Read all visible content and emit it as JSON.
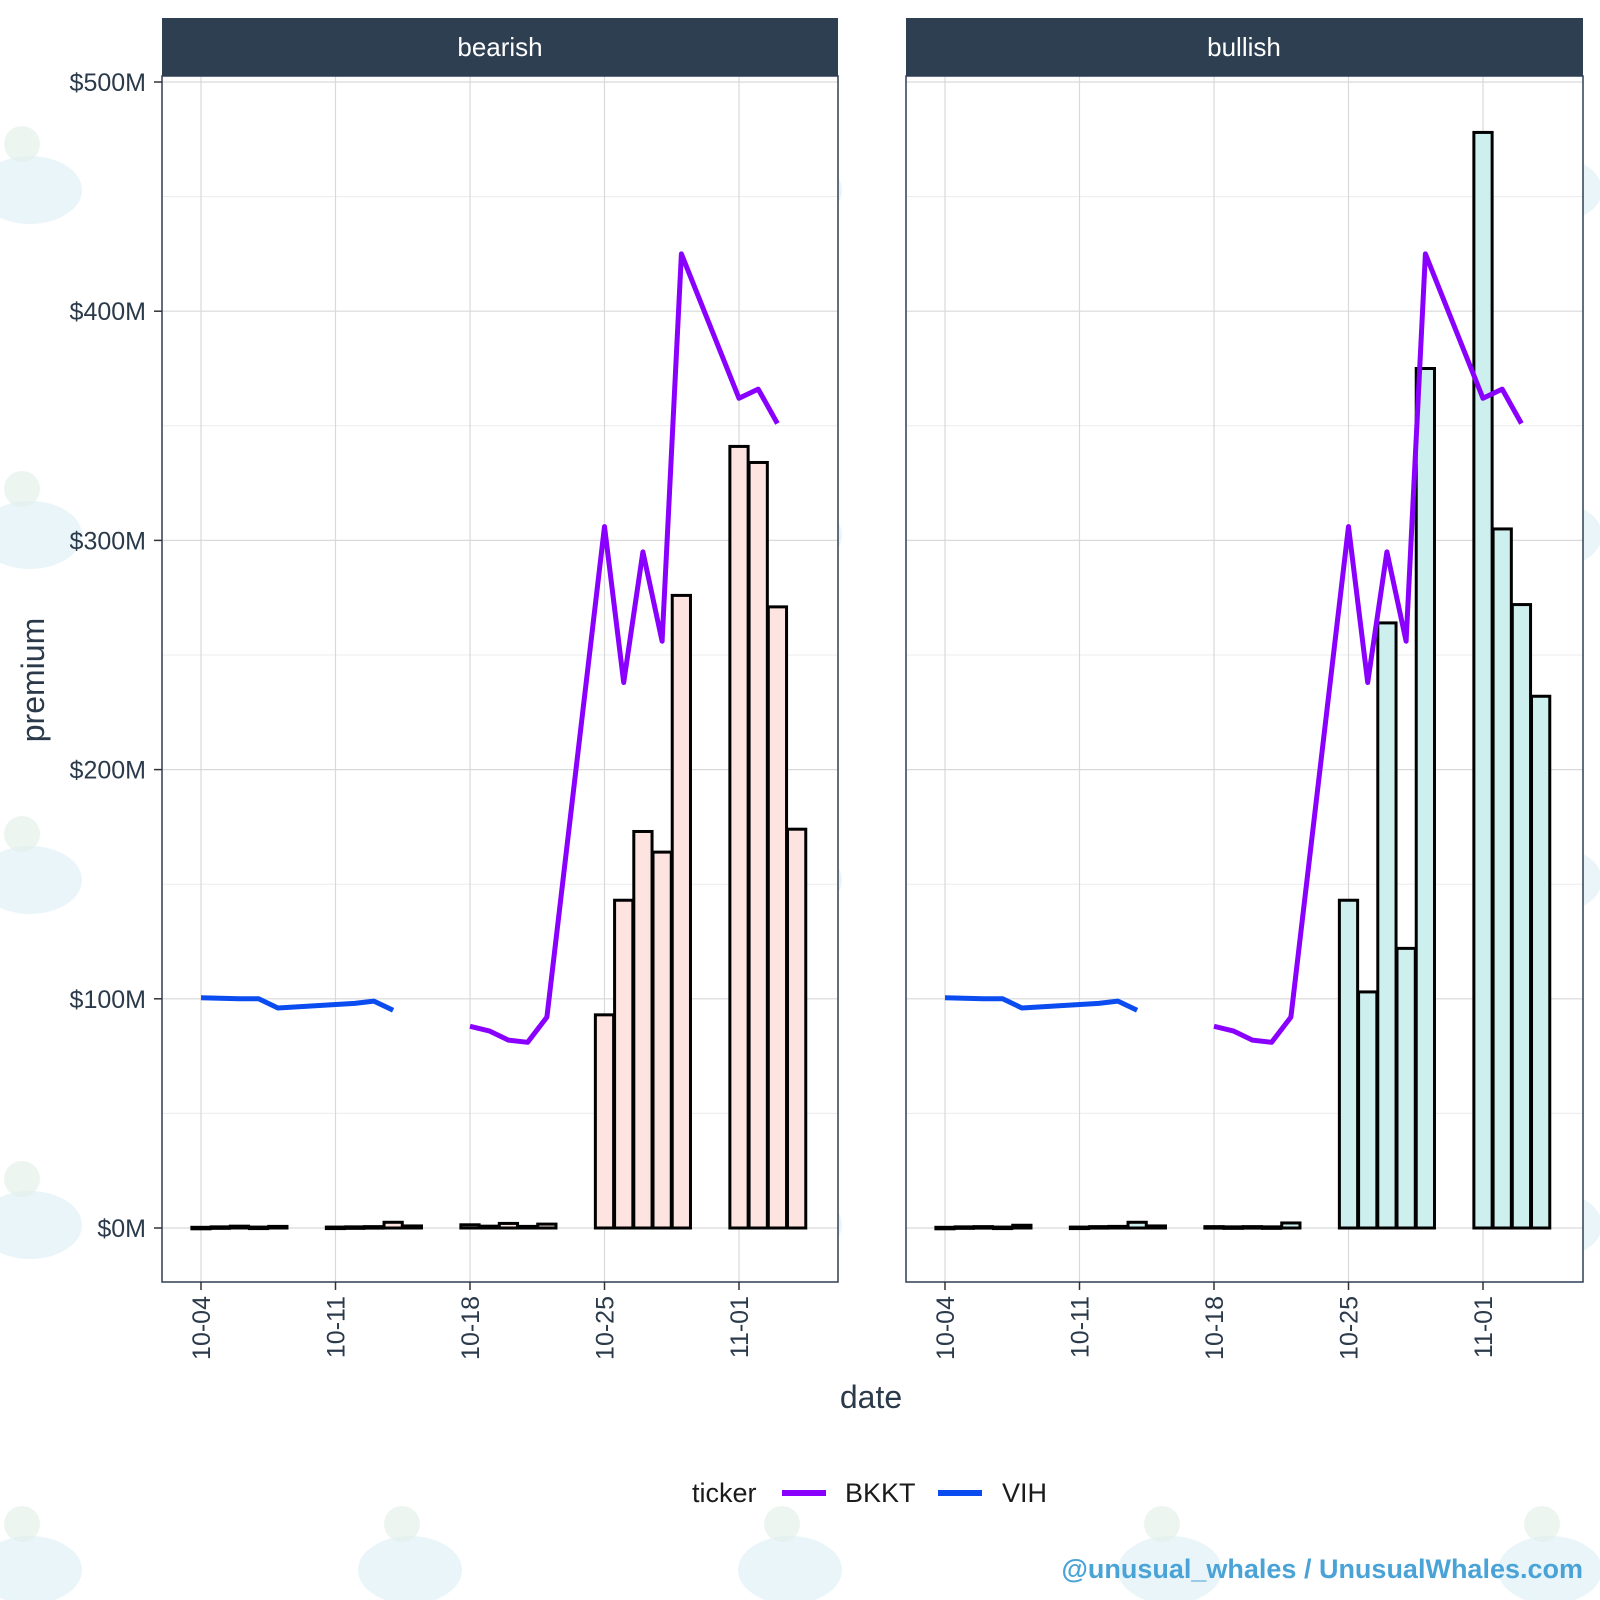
{
  "chart_data": {
    "type": "bar",
    "facets": [
      "bearish",
      "bullish"
    ],
    "xlabel": "date",
    "ylabel": "premium",
    "ylim": [
      -24,
      500
    ],
    "y_ticks": [
      {
        "value": 0,
        "label": "$0M"
      },
      {
        "value": 100,
        "label": "$100M"
      },
      {
        "value": 200,
        "label": "$200M"
      },
      {
        "value": 300,
        "label": "$300M"
      },
      {
        "value": 400,
        "label": "$400M"
      },
      {
        "value": 500,
        "label": "$500M"
      }
    ],
    "x_ticks": [
      {
        "date": "2021-10-04",
        "label": "10-04"
      },
      {
        "date": "2021-10-11",
        "label": "10-11"
      },
      {
        "date": "2021-10-18",
        "label": "10-18"
      },
      {
        "date": "2021-10-25",
        "label": "10-25"
      },
      {
        "date": "2021-11-01",
        "label": "11-01"
      }
    ],
    "xlim": [
      "2021-10-01",
      "2021-11-05"
    ],
    "bar_series": {
      "bearish": {
        "fill": "#fde4e1",
        "bars": [
          {
            "date": "2021-10-04",
            "value": 0.3
          },
          {
            "date": "2021-10-05",
            "value": 0.5
          },
          {
            "date": "2021-10-06",
            "value": 0.8
          },
          {
            "date": "2021-10-07",
            "value": 0.4
          },
          {
            "date": "2021-10-08",
            "value": 0.7
          },
          {
            "date": "2021-10-11",
            "value": 0.4
          },
          {
            "date": "2021-10-12",
            "value": 0.5
          },
          {
            "date": "2021-10-13",
            "value": 0.6
          },
          {
            "date": "2021-10-14",
            "value": 2.5
          },
          {
            "date": "2021-10-15",
            "value": 0.9
          },
          {
            "date": "2021-10-18",
            "value": 1.4
          },
          {
            "date": "2021-10-19",
            "value": 0.8
          },
          {
            "date": "2021-10-20",
            "value": 2.0
          },
          {
            "date": "2021-10-21",
            "value": 0.7
          },
          {
            "date": "2021-10-22",
            "value": 1.7
          },
          {
            "date": "2021-10-25",
            "value": 93
          },
          {
            "date": "2021-10-26",
            "value": 143
          },
          {
            "date": "2021-10-27",
            "value": 173
          },
          {
            "date": "2021-10-28",
            "value": 164
          },
          {
            "date": "2021-10-29",
            "value": 276
          },
          {
            "date": "2021-11-01",
            "value": 341
          },
          {
            "date": "2021-11-02",
            "value": 334
          },
          {
            "date": "2021-11-03",
            "value": 271
          },
          {
            "date": "2021-11-04",
            "value": 174
          }
        ]
      },
      "bullish": {
        "fill": "#cdf0ef",
        "bars": [
          {
            "date": "2021-10-04",
            "value": 0.3
          },
          {
            "date": "2021-10-05",
            "value": 0.5
          },
          {
            "date": "2021-10-06",
            "value": 0.6
          },
          {
            "date": "2021-10-07",
            "value": 0.4
          },
          {
            "date": "2021-10-08",
            "value": 1.2
          },
          {
            "date": "2021-10-11",
            "value": 0.4
          },
          {
            "date": "2021-10-12",
            "value": 0.6
          },
          {
            "date": "2021-10-13",
            "value": 0.7
          },
          {
            "date": "2021-10-14",
            "value": 2.5
          },
          {
            "date": "2021-10-15",
            "value": 0.9
          },
          {
            "date": "2021-10-18",
            "value": 0.6
          },
          {
            "date": "2021-10-19",
            "value": 0.5
          },
          {
            "date": "2021-10-20",
            "value": 0.6
          },
          {
            "date": "2021-10-21",
            "value": 0.5
          },
          {
            "date": "2021-10-22",
            "value": 2.2
          },
          {
            "date": "2021-10-25",
            "value": 143
          },
          {
            "date": "2021-10-26",
            "value": 103
          },
          {
            "date": "2021-10-27",
            "value": 264
          },
          {
            "date": "2021-10-28",
            "value": 122
          },
          {
            "date": "2021-10-29",
            "value": 375
          },
          {
            "date": "2021-11-01",
            "value": 478
          },
          {
            "date": "2021-11-02",
            "value": 305
          },
          {
            "date": "2021-11-03",
            "value": 272
          },
          {
            "date": "2021-11-04",
            "value": 232
          }
        ]
      }
    },
    "line_series": [
      {
        "name": "VIH",
        "color": "#0a4cf0",
        "segments": [
          [
            {
              "date": "2021-10-04",
              "value": 100.5
            },
            {
              "date": "2021-10-06",
              "value": 100
            },
            {
              "date": "2021-10-07",
              "value": 100
            },
            {
              "date": "2021-10-08",
              "value": 96
            },
            {
              "date": "2021-10-12",
              "value": 98
            },
            {
              "date": "2021-10-13",
              "value": 99
            },
            {
              "date": "2021-10-14",
              "value": 95
            }
          ]
        ]
      },
      {
        "name": "BKKT",
        "color": "#8a00ff",
        "segments": [
          [
            {
              "date": "2021-10-18",
              "value": 88
            },
            {
              "date": "2021-10-19",
              "value": 86
            },
            {
              "date": "2021-10-20",
              "value": 82
            },
            {
              "date": "2021-10-21",
              "value": 81
            },
            {
              "date": "2021-10-22",
              "value": 92
            },
            {
              "date": "2021-10-25",
              "value": 306
            },
            {
              "date": "2021-10-26",
              "value": 238
            },
            {
              "date": "2021-10-27",
              "value": 295
            },
            {
              "date": "2021-10-28",
              "value": 256
            },
            {
              "date": "2021-10-29",
              "value": 425
            },
            {
              "date": "2021-11-01",
              "value": 362
            },
            {
              "date": "2021-11-02",
              "value": 366
            },
            {
              "date": "2021-11-03",
              "value": 351
            }
          ]
        ]
      }
    ],
    "legend": {
      "title": "ticker",
      "position": "bottom",
      "items": [
        {
          "name": "BKKT",
          "color": "#8a00ff"
        },
        {
          "name": "VIH",
          "color": "#0a4cf0"
        }
      ]
    },
    "grid": true
  },
  "credit": "@unusual_whales / UnusualWhales.com",
  "colors": {
    "strip": "#2e3f52",
    "panel_border": "#2e3f52",
    "grid": "#d9d9d9",
    "bar_outline": "#000000"
  }
}
